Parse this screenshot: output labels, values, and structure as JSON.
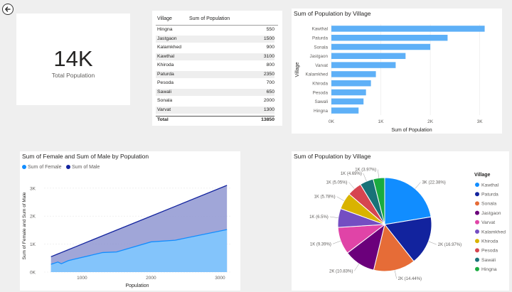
{
  "card": {
    "value": "14K",
    "label": "Total Population"
  },
  "table": {
    "headers": [
      "Village",
      "Sum of Population"
    ],
    "rows": [
      [
        "Hingna",
        "550"
      ],
      [
        "Jastgaon",
        "1500"
      ],
      [
        "Kalamkhed",
        "900"
      ],
      [
        "Kawthal",
        "3100"
      ],
      [
        "Khiroda",
        "800"
      ],
      [
        "Paturda",
        "2350"
      ],
      [
        "Pesoda",
        "700"
      ],
      [
        "Sawali",
        "650"
      ],
      [
        "Sonala",
        "2000"
      ],
      [
        "Varvat",
        "1300"
      ]
    ],
    "total_label": "Total",
    "total_value": "13850"
  },
  "chart_data": [
    {
      "type": "bar",
      "orientation": "horizontal",
      "title": "Sum of Population by Village",
      "xlabel": "Sum of Population",
      "ylabel": "Village",
      "categories": [
        "Kawthal",
        "Paturda",
        "Sonala",
        "Jastgaon",
        "Varvat",
        "Kalamkhed",
        "Khiroda",
        "Pesoda",
        "Sawali",
        "Hingna"
      ],
      "values": [
        3100,
        2350,
        2000,
        1500,
        1300,
        900,
        800,
        700,
        650,
        550
      ],
      "xlim": [
        0,
        3250
      ],
      "xticks": [
        0,
        1000,
        2000,
        3000
      ],
      "xtick_labels": [
        "0K",
        "1K",
        "2K",
        "3K"
      ],
      "color": "#5eb0f7"
    },
    {
      "type": "area",
      "title": "Sum of Female and Sum of Male by Population",
      "xlabel": "Population",
      "ylabel": "Sum of Female and Sum of Male",
      "legend": "top-left",
      "xlim": [
        450,
        3150
      ],
      "ylim": [
        0,
        3300
      ],
      "xticks": [
        1000,
        2000,
        3000
      ],
      "xtick_labels": [
        "1000",
        "2000",
        "3000"
      ],
      "yticks": [
        0,
        1000,
        2000,
        3000
      ],
      "ytick_labels": [
        "0K",
        "1K",
        "2K",
        "3K"
      ],
      "x": [
        550,
        650,
        700,
        800,
        900,
        1300,
        1500,
        2000,
        2350,
        3100
      ],
      "series": [
        {
          "name": "Sum of Female",
          "values": [
            280,
            360,
            300,
            410,
            470,
            700,
            720,
            1080,
            1140,
            1520
          ],
          "color": "#118dff"
        },
        {
          "name": "Sum of Male",
          "values": [
            550,
            650,
            700,
            800,
            900,
            1300,
            1500,
            2000,
            2350,
            3100
          ],
          "color": "#12239e"
        }
      ]
    },
    {
      "type": "pie",
      "title": "Sum of Population by Village",
      "legend_title": "Village",
      "legend": "right",
      "slices": [
        {
          "label": "Kawthal",
          "value": 3100,
          "text": "3K (22.38%)",
          "color": "#118dff"
        },
        {
          "label": "Paturda",
          "value": 2350,
          "text": "2K (16.97%)",
          "color": "#12239e"
        },
        {
          "label": "Sonala",
          "value": 2000,
          "text": "2K (14.44%)",
          "color": "#e66c37"
        },
        {
          "label": "Jastgaon",
          "value": 1500,
          "text": "2K (10.83%)",
          "color": "#6b007b"
        },
        {
          "label": "Varvat",
          "value": 1300,
          "text": "1K (9.39%)",
          "color": "#e044a7"
        },
        {
          "label": "Kalamkhed",
          "value": 900,
          "text": "1K (6.5%)",
          "color": "#744ec2"
        },
        {
          "label": "Khiroda",
          "value": 800,
          "text": "1K (5.78%)",
          "color": "#d9b300"
        },
        {
          "label": "Pesoda",
          "value": 700,
          "text": "1K (5.05%)",
          "color": "#d64550"
        },
        {
          "label": "Sawali",
          "value": 650,
          "text": "1K (4.69%)",
          "color": "#197278"
        },
        {
          "label": "Hingna",
          "value": 550,
          "text": "1K (3.97%)",
          "color": "#1aab40"
        }
      ]
    }
  ]
}
